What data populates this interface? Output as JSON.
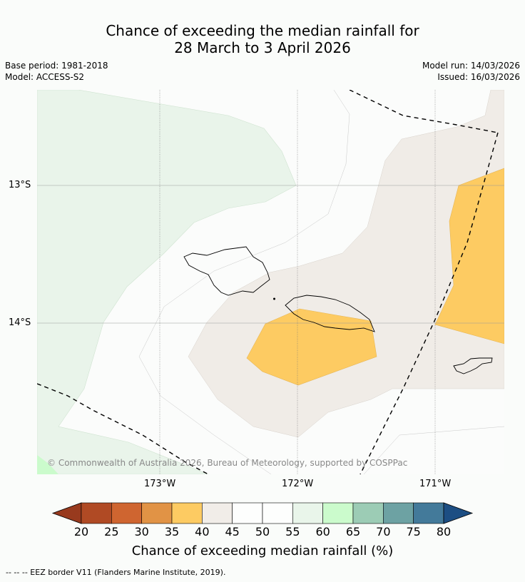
{
  "title_line1": "Chance of exceeding the median rainfall for",
  "title_line2": "28 March to 3 April 2026",
  "base_period": "Base period: 1981-2018",
  "model": "Model: ACCESS-S2",
  "model_run": "Model run: 14/03/2026",
  "issued": "Issued: 16/03/2026",
  "copyright": "© Commonwealth of Australia 2026, Bureau of Meteorology, supported by COSPPac",
  "axes": {
    "lon_labels": [
      "173°W",
      "172°W",
      "171°W"
    ],
    "lat_labels": [
      "13°S",
      "14°S"
    ]
  },
  "colorbar": {
    "title": "Chance of exceeding median rainfall (%)",
    "ticks": [
      "20",
      "25",
      "30",
      "35",
      "40",
      "45",
      "50",
      "55",
      "60",
      "65",
      "70",
      "75",
      "80"
    ],
    "colors": [
      "#b04a24",
      "#cf6530",
      "#e19345",
      "#fdcb62",
      "#f1ede8",
      "#fdfefd",
      "#fdfefd",
      "#e9f5ea",
      "#cbfbcc",
      "#9cccb5",
      "#6da2a3",
      "#437a9a"
    ],
    "low_color": "#983a1e",
    "high_color": "#1c4e83"
  },
  "footer": "--  --  -- EEZ border V11 (Flanders Marine Institute, 2019)."
}
